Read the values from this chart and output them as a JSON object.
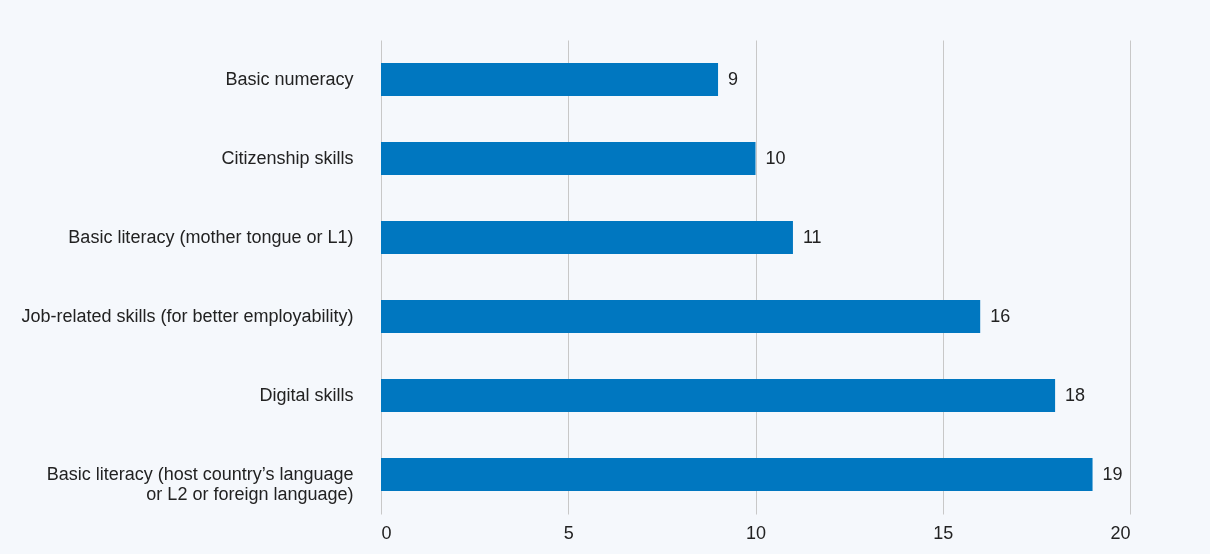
{
  "chart_data": {
    "type": "bar",
    "orientation": "horizontal",
    "categories": [
      "Basic numeracy",
      "Citizenship skills",
      "Basic literacy (mother tongue or L1)",
      "Job-related skills (for better employability)",
      "Digital skills",
      "Basic literacy (host country’s language\nor L2 or foreign language)"
    ],
    "values": [
      9,
      10,
      11,
      16,
      18,
      19
    ],
    "color": "#0077c0",
    "xlim": [
      0,
      20
    ],
    "xticks": [
      0,
      5,
      10,
      15,
      20
    ],
    "grid": "x",
    "data_labels": true
  }
}
